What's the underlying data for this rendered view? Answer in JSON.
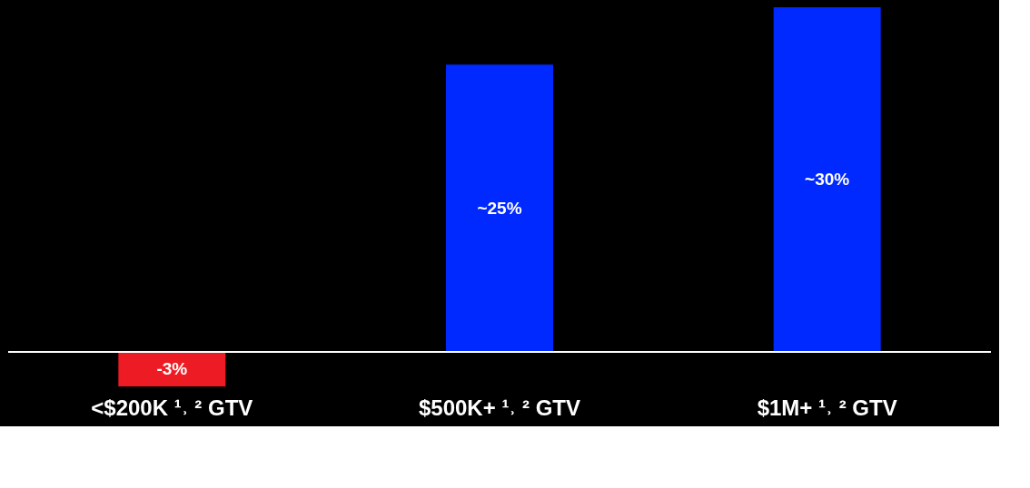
{
  "chart_data": {
    "type": "bar",
    "categories": [
      "<$200K ¹˒ ² GTV",
      "$500K+ ¹˒ ² GTV",
      "$1M+ ¹˒ ² GTV"
    ],
    "values": [
      -3,
      25,
      30
    ],
    "colors": [
      "#ed1c24",
      "#0029ff",
      "#0029ff"
    ],
    "value_labels": [
      "-3%",
      "~25%",
      "~30%"
    ],
    "grid": false,
    "legend": false
  }
}
